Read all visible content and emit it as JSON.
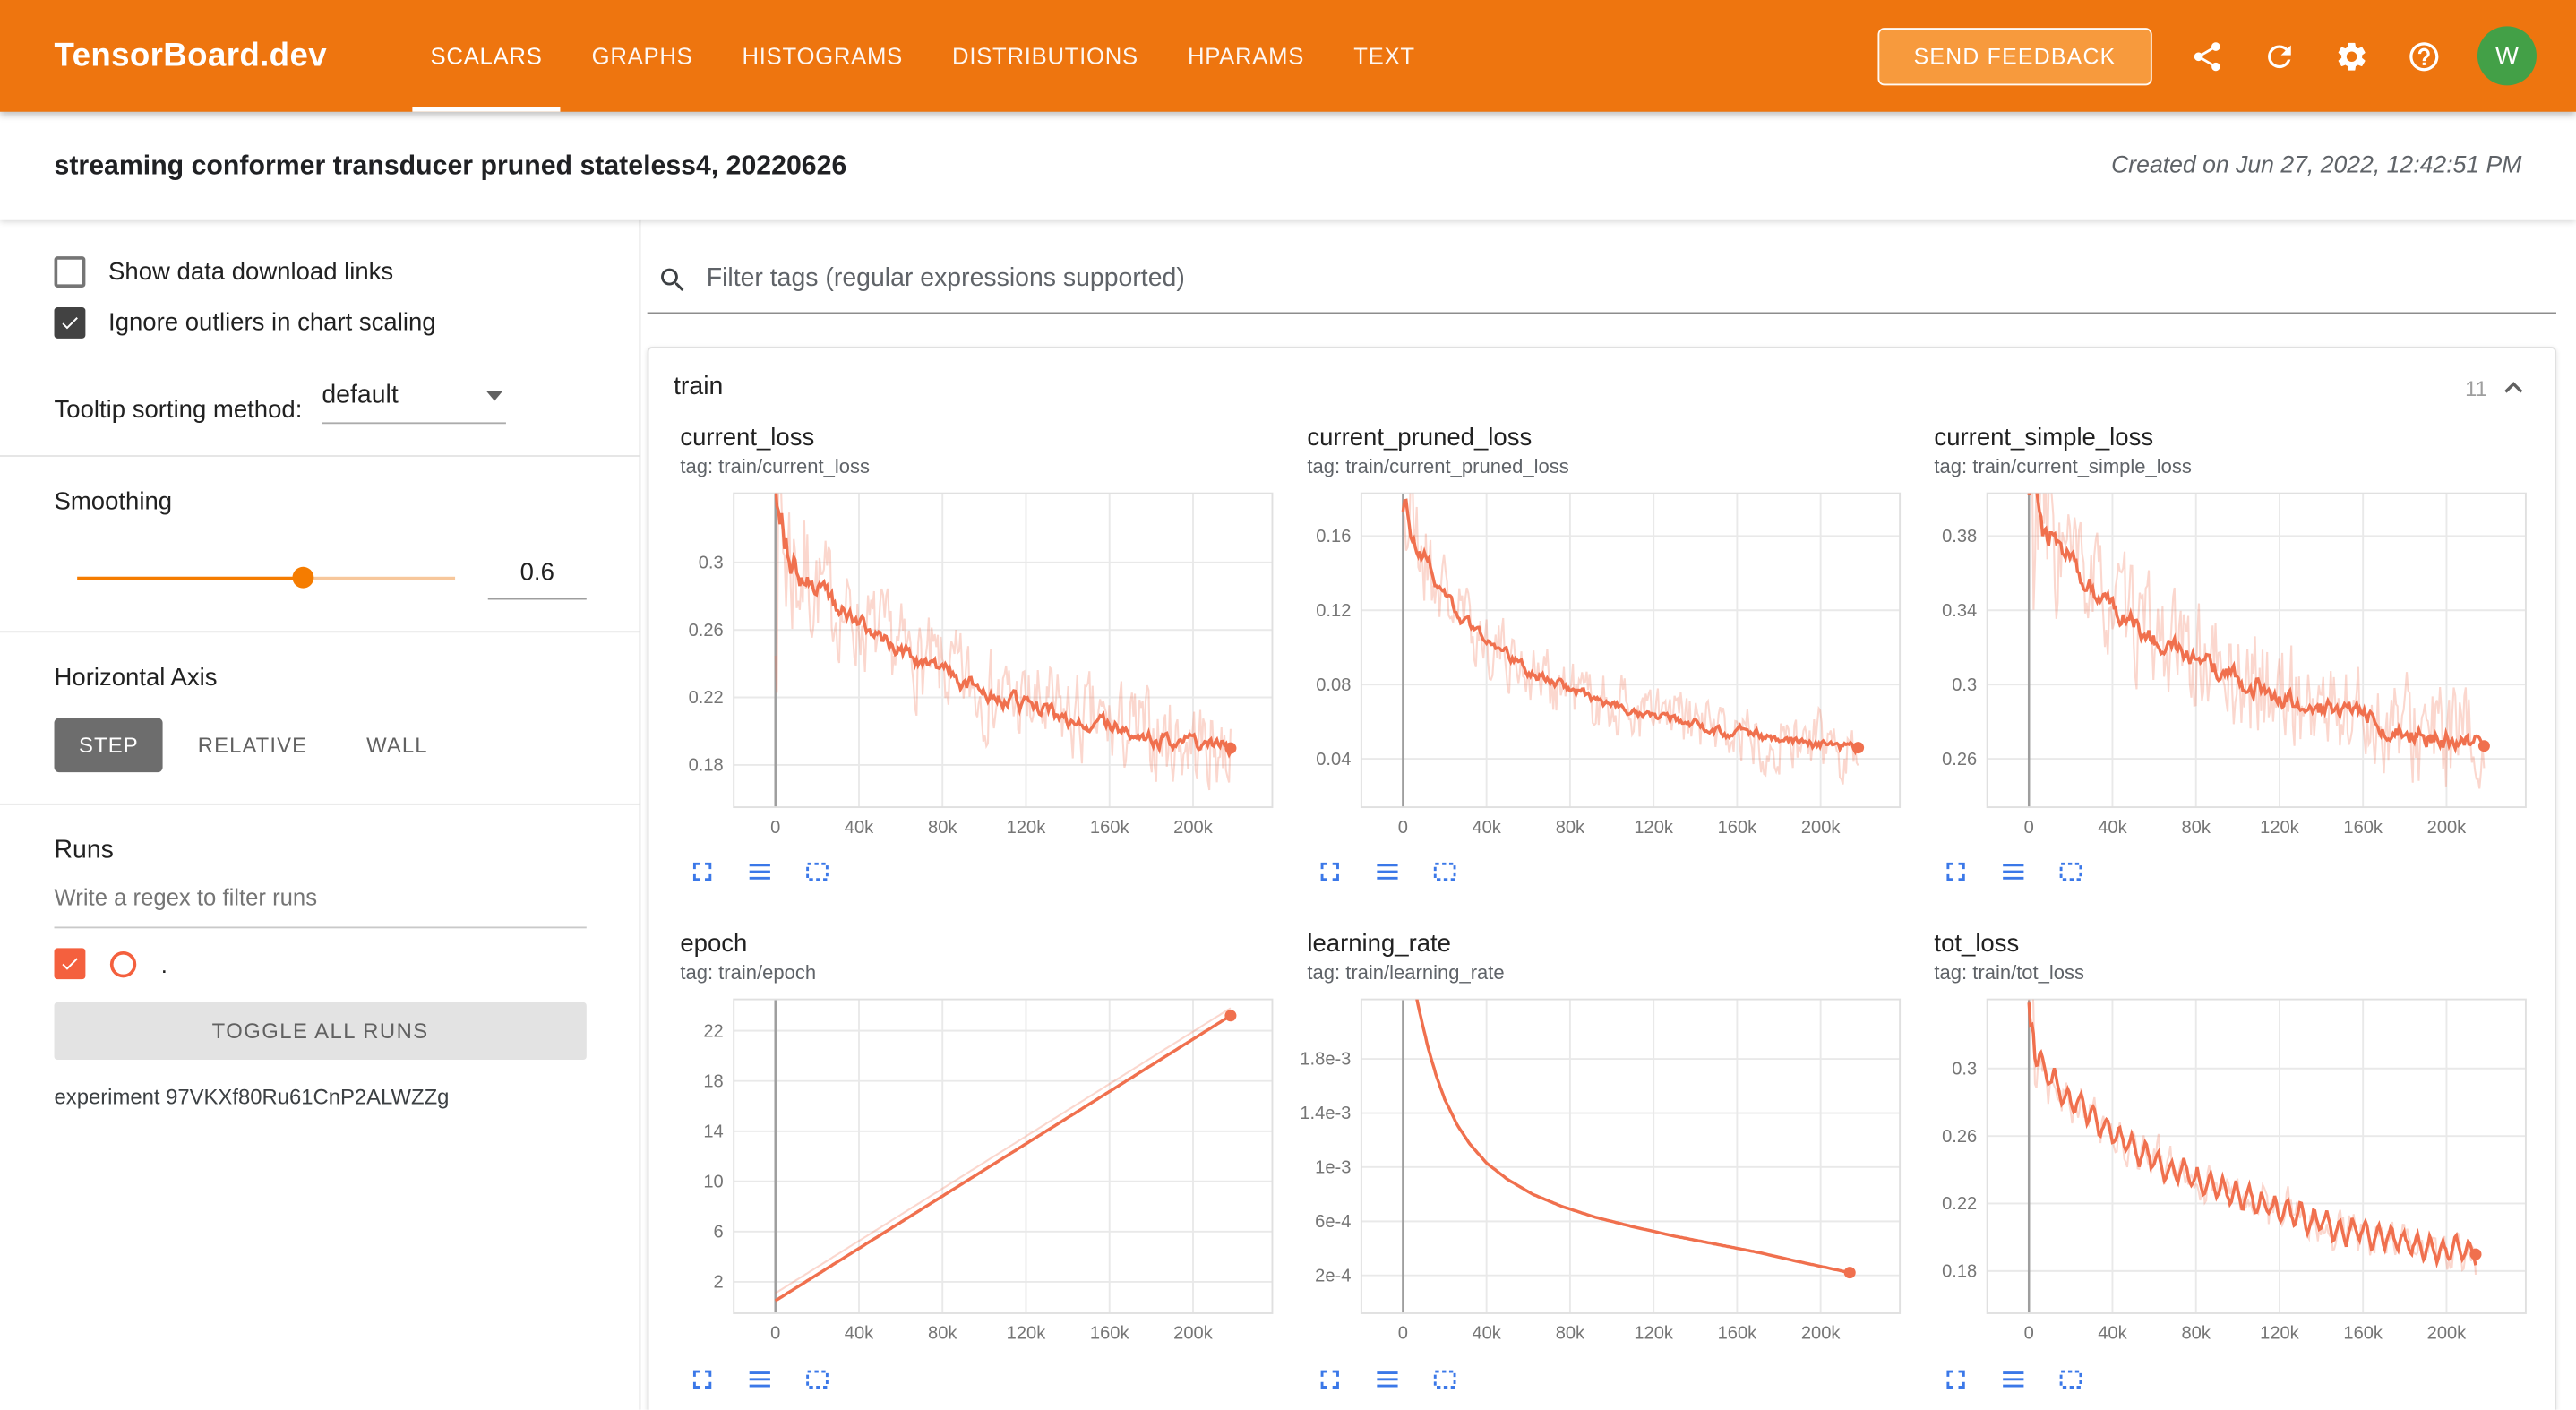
{
  "header": {
    "brand": "TensorBoard.dev",
    "tabs": [
      {
        "label": "SCALARS",
        "active": true
      },
      {
        "label": "GRAPHS",
        "active": false
      },
      {
        "label": "HISTOGRAMS",
        "active": false
      },
      {
        "label": "DISTRIBUTIONS",
        "active": false
      },
      {
        "label": "HPARAMS",
        "active": false
      },
      {
        "label": "TEXT",
        "active": false
      }
    ],
    "send_feedback": "SEND FEEDBACK",
    "icons": [
      "share-icon",
      "refresh-icon",
      "settings-icon",
      "help-icon"
    ],
    "avatar_letter": "W"
  },
  "title_bar": {
    "title": "streaming conformer transducer pruned stateless4, 20220626",
    "created": "Created on Jun 27, 2022, 12:42:51 PM"
  },
  "sidebar": {
    "show_download": {
      "label": "Show data download links",
      "checked": false
    },
    "ignore_outliers": {
      "label": "Ignore outliers in chart scaling",
      "checked": true
    },
    "tooltip_sorting": {
      "label": "Tooltip sorting method:",
      "value": "default"
    },
    "smoothing": {
      "label": "Smoothing",
      "value": "0.6"
    },
    "horizontal_axis": {
      "label": "Horizontal Axis",
      "options": [
        "STEP",
        "RELATIVE",
        "WALL"
      ],
      "selected": "STEP"
    },
    "runs": {
      "label": "Runs",
      "filter_placeholder": "Write a regex to filter runs",
      "run_checked": true,
      "run_name": ".",
      "toggle_all": "TOGGLE ALL RUNS",
      "experiment": "experiment 97VKXf80Ru61CnP2ALWZZg"
    }
  },
  "main": {
    "filter_placeholder": "Filter tags (regular expressions supported)",
    "card": {
      "title": "train",
      "count": "11"
    },
    "chart_icons": [
      "fullscreen-icon",
      "data-lines-icon",
      "fit-domain-icon"
    ]
  },
  "colors": {
    "header_bg": "#ee750f",
    "feedback_bg": "#f79a3d",
    "avatar_green": "#43a047",
    "accent": "#f57c00",
    "run_color": "#f4603e",
    "line": "#f0704e",
    "line_light": "rgba(240,112,78,0.28)",
    "icon_blue": "#3b78e8"
  },
  "chart_data": [
    {
      "type": "line",
      "title": "current_loss",
      "tag": "tag: train/current_loss",
      "xlabel": "step",
      "ylabel": "",
      "xlim": [
        -20000,
        238000
      ],
      "ylim": [
        0.155,
        0.341
      ],
      "x_ticks": [
        [
          0,
          "0"
        ],
        [
          40000,
          "40k"
        ],
        [
          80000,
          "80k"
        ],
        [
          120000,
          "120k"
        ],
        [
          160000,
          "160k"
        ],
        [
          200000,
          "200k"
        ]
      ],
      "y_ticks": [
        [
          0.18,
          "0.18"
        ],
        [
          0.22,
          "0.22"
        ],
        [
          0.26,
          "0.26"
        ],
        [
          0.3,
          "0.3"
        ]
      ],
      "trend": [
        [
          0,
          0.335
        ],
        [
          2000,
          0.318
        ],
        [
          6000,
          0.306
        ],
        [
          12000,
          0.296
        ],
        [
          20000,
          0.286
        ],
        [
          30000,
          0.273
        ],
        [
          40000,
          0.263
        ],
        [
          55000,
          0.251
        ],
        [
          70000,
          0.241
        ],
        [
          85000,
          0.232
        ],
        [
          100000,
          0.224
        ],
        [
          120000,
          0.215
        ],
        [
          140000,
          0.208
        ],
        [
          160000,
          0.202
        ],
        [
          180000,
          0.197
        ],
        [
          200000,
          0.193
        ],
        [
          218000,
          0.19
        ]
      ],
      "noise_raw": 0.017,
      "noise_smooth": 0.0055,
      "spike_boost": 2.8,
      "spike_tau": 9000,
      "seed": 7,
      "dot": true
    },
    {
      "type": "line",
      "title": "current_pruned_loss",
      "tag": "tag: train/current_pruned_loss",
      "xlabel": "step",
      "ylabel": "",
      "xlim": [
        -20000,
        238000
      ],
      "ylim": [
        0.014,
        0.183
      ],
      "x_ticks": [
        [
          0,
          "0"
        ],
        [
          40000,
          "40k"
        ],
        [
          80000,
          "80k"
        ],
        [
          120000,
          "120k"
        ],
        [
          160000,
          "160k"
        ],
        [
          200000,
          "200k"
        ]
      ],
      "y_ticks": [
        [
          0.04,
          "0.04"
        ],
        [
          0.08,
          "0.08"
        ],
        [
          0.12,
          "0.12"
        ],
        [
          0.16,
          "0.16"
        ]
      ],
      "trend": [
        [
          0,
          0.18
        ],
        [
          3000,
          0.168
        ],
        [
          8000,
          0.155
        ],
        [
          15000,
          0.138
        ],
        [
          25000,
          0.121
        ],
        [
          35000,
          0.108
        ],
        [
          45000,
          0.099
        ],
        [
          60000,
          0.088
        ],
        [
          75000,
          0.08
        ],
        [
          90000,
          0.073
        ],
        [
          110000,
          0.066
        ],
        [
          130000,
          0.061
        ],
        [
          150000,
          0.056
        ],
        [
          170000,
          0.052
        ],
        [
          190000,
          0.049
        ],
        [
          218000,
          0.046
        ]
      ],
      "noise_raw": 0.011,
      "noise_smooth": 0.0035,
      "spike_boost": 2.2,
      "spike_tau": 9000,
      "seed": 21,
      "dot": true
    },
    {
      "type": "line",
      "title": "current_simple_loss",
      "tag": "tag: train/current_simple_loss",
      "xlabel": "step",
      "ylabel": "",
      "xlim": [
        -20000,
        238000
      ],
      "ylim": [
        0.234,
        0.403
      ],
      "x_ticks": [
        [
          0,
          "0"
        ],
        [
          40000,
          "40k"
        ],
        [
          80000,
          "80k"
        ],
        [
          120000,
          "120k"
        ],
        [
          160000,
          "160k"
        ],
        [
          200000,
          "200k"
        ]
      ],
      "y_ticks": [
        [
          0.26,
          "0.26"
        ],
        [
          0.3,
          "0.3"
        ],
        [
          0.34,
          "0.34"
        ],
        [
          0.38,
          "0.38"
        ]
      ],
      "trend": [
        [
          0,
          0.4
        ],
        [
          4000,
          0.39
        ],
        [
          10000,
          0.38
        ],
        [
          18000,
          0.368
        ],
        [
          28000,
          0.355
        ],
        [
          40000,
          0.342
        ],
        [
          55000,
          0.329
        ],
        [
          70000,
          0.319
        ],
        [
          85000,
          0.311
        ],
        [
          100000,
          0.303
        ],
        [
          120000,
          0.295
        ],
        [
          140000,
          0.288
        ],
        [
          160000,
          0.282
        ],
        [
          180000,
          0.276
        ],
        [
          200000,
          0.271
        ],
        [
          218000,
          0.267
        ]
      ],
      "noise_raw": 0.018,
      "noise_smooth": 0.0065,
      "spike_boost": 2.0,
      "spike_tau": 9000,
      "seed": 33,
      "dot": true
    },
    {
      "type": "line",
      "title": "epoch",
      "tag": "tag: train/epoch",
      "xlabel": "step",
      "ylabel": "",
      "xlim": [
        -20000,
        238000
      ],
      "ylim": [
        -0.5,
        24.5
      ],
      "x_ticks": [
        [
          0,
          "0"
        ],
        [
          40000,
          "40k"
        ],
        [
          80000,
          "80k"
        ],
        [
          120000,
          "120k"
        ],
        [
          160000,
          "160k"
        ],
        [
          200000,
          "200k"
        ]
      ],
      "y_ticks": [
        [
          2,
          "2"
        ],
        [
          6,
          "6"
        ],
        [
          10,
          "10"
        ],
        [
          14,
          "14"
        ],
        [
          18,
          "18"
        ],
        [
          22,
          "22"
        ]
      ],
      "trend": [
        [
          0,
          0.5
        ],
        [
          218000,
          23.2
        ]
      ],
      "trend_raw": [
        [
          0,
          1.1
        ],
        [
          218000,
          23.8
        ]
      ],
      "noise_raw": 0,
      "noise_smooth": 0,
      "spike_boost": 0,
      "spike_tau": 1,
      "seed": 1,
      "dot": true
    },
    {
      "type": "line",
      "title": "learning_rate",
      "tag": "tag: train/learning_rate",
      "xlabel": "step",
      "ylabel": "",
      "xlim": [
        -20000,
        238000
      ],
      "ylim": [
        -8e-05,
        0.00224
      ],
      "x_ticks": [
        [
          0,
          "0"
        ],
        [
          40000,
          "40k"
        ],
        [
          80000,
          "80k"
        ],
        [
          120000,
          "120k"
        ],
        [
          160000,
          "160k"
        ],
        [
          200000,
          "200k"
        ]
      ],
      "y_ticks": [
        [
          0.0002,
          "2e-4"
        ],
        [
          0.0006,
          "6e-4"
        ],
        [
          0.001,
          "1e-3"
        ],
        [
          0.0014,
          "1.4e-3"
        ],
        [
          0.0018,
          "1.8e-3"
        ]
      ],
      "trend": [
        [
          0,
          0.0026
        ],
        [
          4000,
          0.00243
        ],
        [
          8000,
          0.00214
        ],
        [
          12000,
          0.00188
        ],
        [
          16000,
          0.00167
        ],
        [
          20000,
          0.0015
        ],
        [
          26000,
          0.00131
        ],
        [
          32000,
          0.00117
        ],
        [
          40000,
          0.00103
        ],
        [
          50000,
          0.00091
        ],
        [
          62000,
          0.0008
        ],
        [
          76000,
          0.00071
        ],
        [
          92000,
          0.00063
        ],
        [
          110000,
          0.00056
        ],
        [
          130000,
          0.00049
        ],
        [
          150000,
          0.00043
        ],
        [
          170000,
          0.00037
        ],
        [
          190000,
          0.0003
        ],
        [
          205000,
          0.00025
        ],
        [
          214000,
          0.00022
        ]
      ],
      "noise_raw": 0,
      "noise_smooth": 0,
      "spike_boost": 0,
      "spike_tau": 1,
      "seed": 1,
      "dot": true
    },
    {
      "type": "line",
      "title": "tot_loss",
      "tag": "tag: train/tot_loss",
      "xlabel": "step",
      "ylabel": "",
      "xlim": [
        -20000,
        238000
      ],
      "ylim": [
        0.155,
        0.341
      ],
      "x_ticks": [
        [
          0,
          "0"
        ],
        [
          40000,
          "40k"
        ],
        [
          80000,
          "80k"
        ],
        [
          120000,
          "120k"
        ],
        [
          160000,
          "160k"
        ],
        [
          200000,
          "200k"
        ]
      ],
      "y_ticks": [
        [
          0.18,
          "0.18"
        ],
        [
          0.22,
          "0.22"
        ],
        [
          0.26,
          "0.26"
        ],
        [
          0.3,
          "0.3"
        ]
      ],
      "trend": [
        [
          0,
          0.335
        ],
        [
          3000,
          0.312
        ],
        [
          8000,
          0.299
        ],
        [
          15000,
          0.288
        ],
        [
          25000,
          0.276
        ],
        [
          35000,
          0.266
        ],
        [
          50000,
          0.253
        ],
        [
          65000,
          0.243
        ],
        [
          80000,
          0.234
        ],
        [
          95000,
          0.227
        ],
        [
          110000,
          0.22
        ],
        [
          130000,
          0.212
        ],
        [
          150000,
          0.205
        ],
        [
          170000,
          0.199
        ],
        [
          190000,
          0.194
        ],
        [
          214000,
          0.19
        ]
      ],
      "noise_raw": 0.006,
      "noise_smooth": 0.0028,
      "spike_boost": 6,
      "spike_tau": 2600,
      "seed": 55,
      "zigzag": {
        "amp": 0.0075,
        "period": 6200
      },
      "dot": true
    }
  ]
}
